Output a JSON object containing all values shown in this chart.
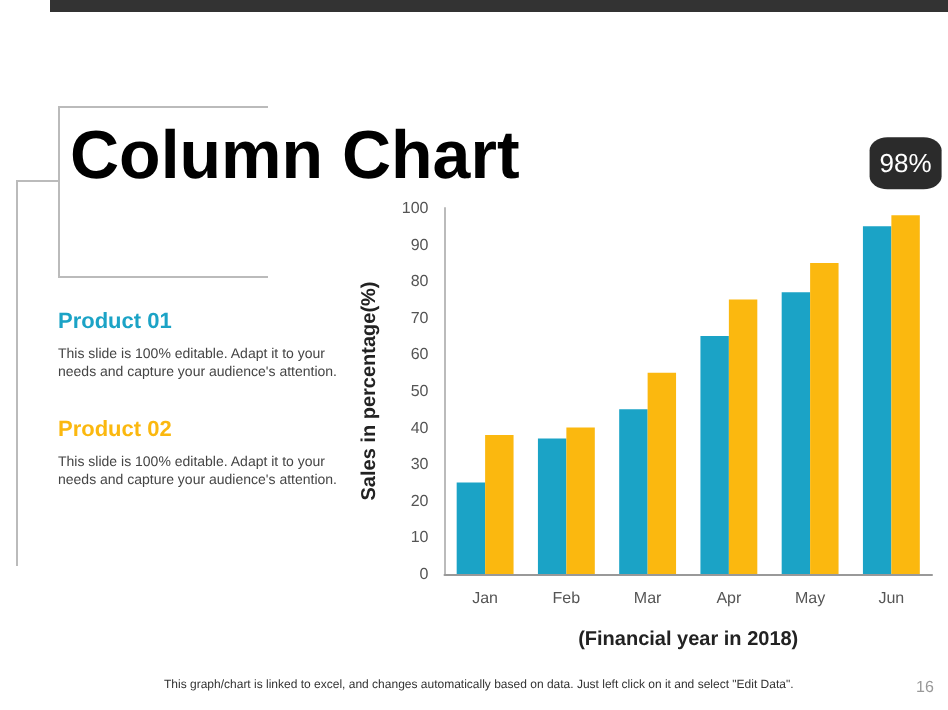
{
  "chart_data": {
    "type": "bar",
    "title": "Column Chart",
    "xlabel": "(Financial year in 2018)",
    "ylabel": "Sales in percentage(%)",
    "categories": [
      "Jan",
      "Feb",
      "Mar",
      "Apr",
      "May",
      "Jun"
    ],
    "series": [
      {
        "name": "Product 01",
        "color": "#1ba3c6",
        "values": [
          25,
          37,
          45,
          65,
          77,
          95
        ]
      },
      {
        "name": "Product 02",
        "color": "#fbb80f",
        "values": [
          38,
          40,
          55,
          75,
          85,
          98
        ]
      }
    ],
    "ylim": [
      0,
      100
    ],
    "yticks": [
      0,
      10,
      20,
      30,
      40,
      50,
      60,
      70,
      80,
      90,
      100
    ],
    "grid": false,
    "legend": "left",
    "annotations": [
      {
        "text": "98%",
        "x": "Jun",
        "y": 98
      },
      "This slide is 100% editable. Adapt it to your needs and capture your audience's attention.",
      "This slide is 100% editable. Adapt it to your needs and capture your audience's attention.",
      "This graph/chart is linked to excel, and changes automatically based on data. Just left click on it and select \"Edit Data\".",
      "16"
    ]
  }
}
